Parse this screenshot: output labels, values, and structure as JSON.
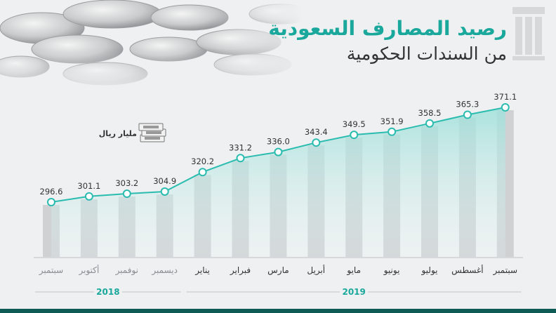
{
  "header": {
    "title_line1": "رصيد المصارف السعودية",
    "title_line2": "من السندات الحكومية"
  },
  "unit_label": "مليار ريال",
  "colors": {
    "accent": "#1aa89c",
    "line": "#2bbcb0",
    "bar": "#cfd1d3",
    "text": "#333333"
  },
  "chart_data": {
    "type": "bar",
    "title": "رصيد المصارف السعودية من السندات الحكومية",
    "ylabel": "مليار ريال",
    "categories": [
      "سبتمبر",
      "أكتوبر",
      "نوفمبر",
      "ديسمبر",
      "يناير",
      "فبراير",
      "مارس",
      "أبريل",
      "مايو",
      "يونيو",
      "يوليو",
      "أغسطس",
      "سبتمبر"
    ],
    "values": [
      296.6,
      301.1,
      303.2,
      304.9,
      320.2,
      331.2,
      336.0,
      343.4,
      349.5,
      351.9,
      358.5,
      365.3,
      371.1
    ],
    "value_labels": [
      "296.6",
      "301.1",
      "303.2",
      "304.9",
      "320.2",
      "331.2",
      "336.0",
      "343.4",
      "349.5",
      "351.9",
      "358.5",
      "365.3",
      "371.1"
    ],
    "groups": [
      {
        "label": "2018",
        "count": 4
      },
      {
        "label": "2019",
        "count": 9
      }
    ],
    "overlay": "line"
  }
}
